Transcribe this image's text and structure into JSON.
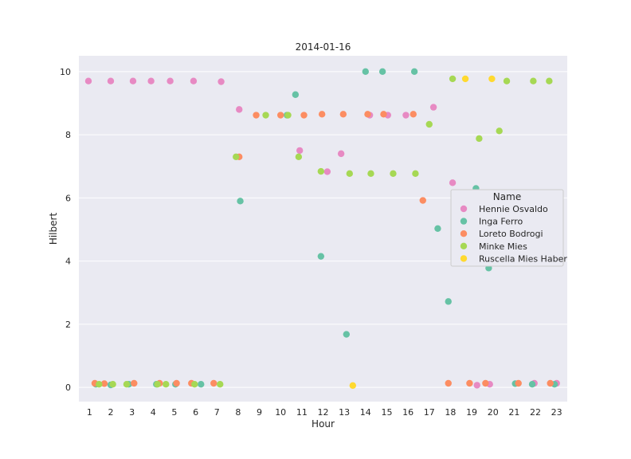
{
  "chart_data": {
    "type": "scatter",
    "title": "2014-01-16",
    "xlabel": "Hour",
    "ylabel": "Hilbert",
    "categories": [
      "1",
      "2",
      "3",
      "4",
      "5",
      "6",
      "7",
      "8",
      "9",
      "10",
      "11",
      "12",
      "13",
      "14",
      "15",
      "16",
      "17",
      "18",
      "19",
      "20",
      "21",
      "22",
      "23"
    ],
    "ylim": [
      -0.45,
      10.5
    ],
    "yticks": [
      0,
      2,
      4,
      6,
      8,
      10
    ],
    "grid": true,
    "legend": {
      "title": "Name",
      "placement": "right"
    },
    "series": [
      {
        "name": "Hennie Osvaldo",
        "color": "#e78ac3",
        "points": [
          {
            "x": 0.95,
            "y": 9.7
          },
          {
            "x": 2.0,
            "y": 9.7
          },
          {
            "x": 3.05,
            "y": 9.7
          },
          {
            "x": 3.9,
            "y": 9.7
          },
          {
            "x": 4.8,
            "y": 9.7
          },
          {
            "x": 5.9,
            "y": 9.7
          },
          {
            "x": 7.2,
            "y": 9.68
          },
          {
            "x": 8.05,
            "y": 8.8
          },
          {
            "x": 10.9,
            "y": 7.5
          },
          {
            "x": 12.2,
            "y": 6.83
          },
          {
            "x": 12.85,
            "y": 7.4
          },
          {
            "x": 14.2,
            "y": 8.62
          },
          {
            "x": 15.05,
            "y": 8.62
          },
          {
            "x": 15.9,
            "y": 8.62
          },
          {
            "x": 17.2,
            "y": 8.87
          },
          {
            "x": 18.1,
            "y": 6.48
          },
          {
            "x": 19.25,
            "y": 0.07
          },
          {
            "x": 19.85,
            "y": 0.1
          },
          {
            "x": 21.95,
            "y": 0.13
          },
          {
            "x": 23.0,
            "y": 0.13
          }
        ]
      },
      {
        "name": "Inga Ferro",
        "color": "#66c2a5",
        "points": [
          {
            "x": 1.3,
            "y": 0.1
          },
          {
            "x": 2.0,
            "y": 0.08
          },
          {
            "x": 2.85,
            "y": 0.1
          },
          {
            "x": 4.15,
            "y": 0.1
          },
          {
            "x": 5.05,
            "y": 0.1
          },
          {
            "x": 6.25,
            "y": 0.1
          },
          {
            "x": 8.1,
            "y": 5.9
          },
          {
            "x": 10.3,
            "y": 8.62
          },
          {
            "x": 10.7,
            "y": 9.27
          },
          {
            "x": 11.9,
            "y": 4.15
          },
          {
            "x": 13.1,
            "y": 1.68
          },
          {
            "x": 14.0,
            "y": 10.0
          },
          {
            "x": 14.8,
            "y": 10.0
          },
          {
            "x": 16.3,
            "y": 10.0
          },
          {
            "x": 17.4,
            "y": 5.03
          },
          {
            "x": 17.9,
            "y": 2.72
          },
          {
            "x": 19.2,
            "y": 6.3
          },
          {
            "x": 19.8,
            "y": 3.78
          },
          {
            "x": 21.05,
            "y": 0.12
          },
          {
            "x": 21.85,
            "y": 0.1
          },
          {
            "x": 22.9,
            "y": 0.1
          }
        ]
      },
      {
        "name": "Loreto Bodrogi",
        "color": "#fc8d62",
        "points": [
          {
            "x": 1.25,
            "y": 0.13
          },
          {
            "x": 1.7,
            "y": 0.12
          },
          {
            "x": 3.1,
            "y": 0.13
          },
          {
            "x": 4.3,
            "y": 0.13
          },
          {
            "x": 5.1,
            "y": 0.13
          },
          {
            "x": 5.8,
            "y": 0.13
          },
          {
            "x": 6.85,
            "y": 0.13
          },
          {
            "x": 8.05,
            "y": 7.3
          },
          {
            "x": 8.85,
            "y": 8.62
          },
          {
            "x": 10.0,
            "y": 8.62
          },
          {
            "x": 11.1,
            "y": 8.62
          },
          {
            "x": 11.95,
            "y": 8.65
          },
          {
            "x": 12.95,
            "y": 8.65
          },
          {
            "x": 14.1,
            "y": 8.65
          },
          {
            "x": 14.85,
            "y": 8.65
          },
          {
            "x": 16.25,
            "y": 8.65
          },
          {
            "x": 16.7,
            "y": 5.92
          },
          {
            "x": 17.9,
            "y": 0.13
          },
          {
            "x": 18.9,
            "y": 0.13
          },
          {
            "x": 19.65,
            "y": 0.13
          },
          {
            "x": 21.2,
            "y": 0.13
          },
          {
            "x": 22.7,
            "y": 0.13
          }
        ]
      },
      {
        "name": "Minke Mies",
        "color": "#a6d854",
        "points": [
          {
            "x": 1.45,
            "y": 0.1
          },
          {
            "x": 2.1,
            "y": 0.1
          },
          {
            "x": 2.75,
            "y": 0.1
          },
          {
            "x": 4.2,
            "y": 0.1
          },
          {
            "x": 4.6,
            "y": 0.1
          },
          {
            "x": 5.95,
            "y": 0.1
          },
          {
            "x": 7.15,
            "y": 0.1
          },
          {
            "x": 7.9,
            "y": 7.3
          },
          {
            "x": 9.3,
            "y": 8.62
          },
          {
            "x": 10.35,
            "y": 8.62
          },
          {
            "x": 10.85,
            "y": 7.3
          },
          {
            "x": 11.9,
            "y": 6.84
          },
          {
            "x": 13.25,
            "y": 6.77
          },
          {
            "x": 14.25,
            "y": 6.77
          },
          {
            "x": 15.3,
            "y": 6.77
          },
          {
            "x": 16.35,
            "y": 6.77
          },
          {
            "x": 17.0,
            "y": 8.33
          },
          {
            "x": 18.1,
            "y": 9.77
          },
          {
            "x": 19.35,
            "y": 7.88
          },
          {
            "x": 20.3,
            "y": 8.12
          },
          {
            "x": 20.65,
            "y": 9.7
          },
          {
            "x": 21.9,
            "y": 9.7
          },
          {
            "x": 22.65,
            "y": 9.7
          }
        ]
      },
      {
        "name": "Ruscella Mies Haber",
        "color": "#ffd92f",
        "points": [
          {
            "x": 13.4,
            "y": 0.06
          },
          {
            "x": 18.7,
            "y": 9.77
          },
          {
            "x": 19.95,
            "y": 9.77
          }
        ]
      }
    ]
  }
}
